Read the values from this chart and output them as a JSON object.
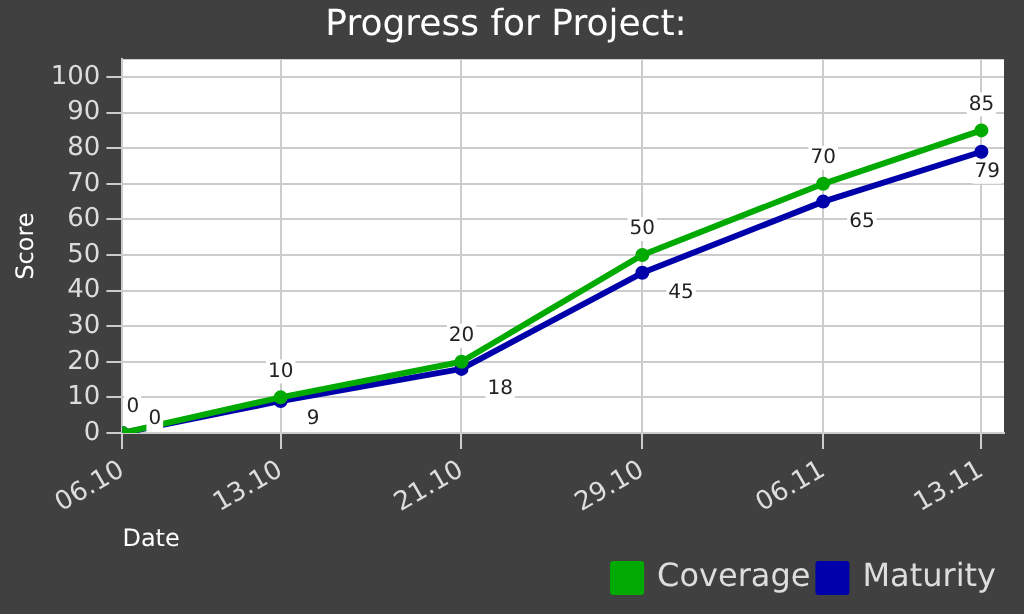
{
  "chart_data": {
    "type": "line",
    "title": "Progress for Project:",
    "xlabel": "Date",
    "ylabel": "Score",
    "x": [
      "--10-06",
      "--10-13",
      "--10-21",
      "--10-29",
      "--11-06",
      "--11-13"
    ],
    "series": [
      {
        "name": "Coverage",
        "color": "#00aa00",
        "values": [
          0,
          10,
          20,
          50,
          70,
          85
        ]
      },
      {
        "name": "Maturity",
        "color": "#0000aa",
        "values": [
          0,
          9,
          18,
          45,
          65,
          79
        ]
      }
    ],
    "xlim": [
      "--10-06",
      "--11-14"
    ],
    "xticks": [
      {
        "value": "--10-06",
        "label": "06.10"
      },
      {
        "value": "--10-13",
        "label": "13.10"
      },
      {
        "value": "--10-21",
        "label": "21.10"
      },
      {
        "value": "--10-29",
        "label": "29.10"
      },
      {
        "value": "--11-06",
        "label": "06.11"
      },
      {
        "value": "--11-13",
        "label": "13.11"
      }
    ],
    "ylim": [
      0,
      105
    ],
    "yticks": [
      0,
      10,
      20,
      30,
      40,
      50,
      60,
      70,
      80,
      90,
      100
    ],
    "grid": true,
    "legend": "bottom",
    "marker": "circle",
    "line_style": "solid",
    "data_labels": true
  }
}
